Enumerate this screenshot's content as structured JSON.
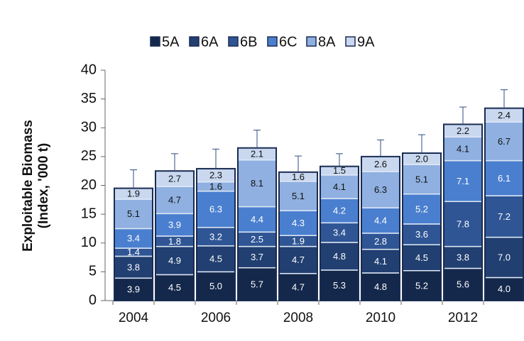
{
  "chart_data": {
    "type": "stacked-bar",
    "y_label": [
      "Exploitable Biomass",
      "(Index, '000 t)"
    ],
    "categories": [
      "2004",
      null,
      "2006",
      null,
      "2008",
      null,
      "2010",
      null,
      "2012",
      null
    ],
    "series": [
      {
        "name": "5A",
        "color": "#14284b",
        "values": [
          3.9,
          4.5,
          5.0,
          5.7,
          4.7,
          5.3,
          4.8,
          5.2,
          5.6,
          4.0
        ],
        "value_labels": [
          "3.9",
          "4.5",
          "5.0",
          "5.7",
          "4.7",
          "5.3",
          "4.8",
          "5.2",
          "5.6",
          "4.0"
        ]
      },
      {
        "name": "6A",
        "color": "#213f70",
        "values": [
          3.8,
          4.9,
          4.5,
          3.7,
          4.7,
          4.8,
          4.1,
          4.5,
          3.8,
          7.0
        ],
        "value_labels": [
          "3.8",
          "4.9",
          "4.5",
          "3.7",
          "4.7",
          "4.8",
          "4.1",
          "4.5",
          "3.8",
          "7.0"
        ]
      },
      {
        "name": "6B",
        "color": "#2f5594",
        "values": [
          1.4,
          1.8,
          3.2,
          2.5,
          1.9,
          3.4,
          2.8,
          3.6,
          7.8,
          7.2
        ],
        "value_labels": [
          "1.4",
          "1.8",
          "3.2",
          "2.5",
          "1.9",
          "3.4",
          "2.8",
          "3.6",
          "7.8",
          "7.2"
        ]
      },
      {
        "name": "6C",
        "color": "#4a7fcf",
        "values": [
          3.4,
          3.9,
          6.3,
          4.4,
          4.3,
          4.2,
          4.4,
          5.2,
          7.1,
          6.1
        ],
        "value_labels": [
          "3.4",
          "3.9",
          "6.3",
          "4.4",
          "4.3",
          "4.2",
          "4.4",
          "5.2",
          "7.1",
          "6.1"
        ]
      },
      {
        "name": "8A",
        "color": "#8fb0e0",
        "values": [
          5.1,
          4.7,
          1.6,
          8.1,
          5.1,
          4.1,
          6.3,
          5.1,
          4.1,
          6.7
        ],
        "value_labels": [
          "5.1",
          "4.7",
          "1.6",
          "8.1",
          "5.1",
          "4.1",
          "6.3",
          "5.1",
          "4.1",
          "6.7"
        ]
      },
      {
        "name": "9A",
        "color": "#c9d8ef",
        "values": [
          1.9,
          2.7,
          2.3,
          2.1,
          1.6,
          1.5,
          2.6,
          2.0,
          2.2,
          2.4
        ],
        "value_labels": [
          "1.9",
          "2.7",
          "2.3",
          "2.1",
          "1.6",
          "1.5",
          "2.6",
          "2.0",
          "2.2",
          "2.4"
        ]
      }
    ],
    "errors": [
      3.2,
      3.0,
      3.4,
      3.1,
      2.8,
      2.2,
      2.9,
      3.2,
      3.0,
      3.2
    ],
    "ylim": [
      0,
      40
    ],
    "yticks": [
      0,
      5,
      10,
      15,
      20,
      25,
      30,
      35,
      40
    ],
    "legend": "top"
  }
}
